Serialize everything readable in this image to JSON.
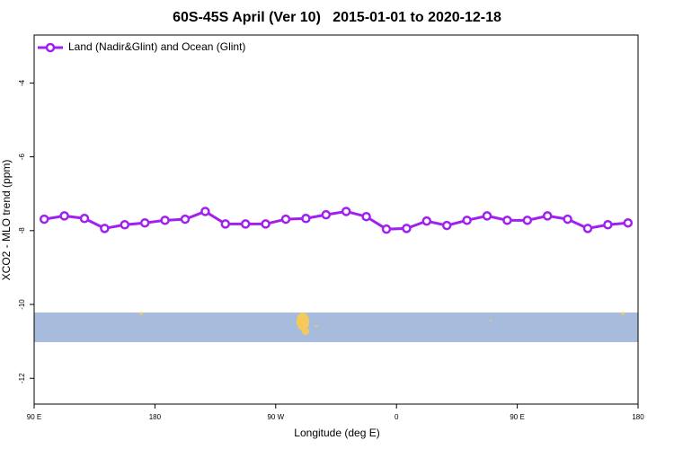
{
  "chart_data": {
    "type": "line",
    "title": "60S-45S April (Ver 10)   2015-01-01 to 2020-12-18",
    "x_label": "Longitude (deg E)",
    "y_label": "XCO2 - MLO trend (ppm)",
    "x": [
      97.5,
      112.5,
      127.5,
      142.5,
      157.5,
      172.5,
      187.5,
      202.5,
      217.5,
      232.5,
      247.5,
      262.5,
      277.5,
      292.5,
      307.5,
      322.5,
      337.5,
      352.5,
      367.5,
      382.5,
      397.5,
      412.5,
      427.5,
      442.5,
      457.5,
      472.5,
      487.5,
      502.5,
      517.5,
      532.5
    ],
    "series": [
      {
        "name": "Land (Nadir&Glint) and Ocean (Glint)",
        "color": "#a020f0",
        "values": [
          -7.69,
          -7.6,
          -7.67,
          -7.94,
          -7.84,
          -7.79,
          -7.72,
          -7.69,
          -7.48,
          -7.82,
          -7.82,
          -7.82,
          -7.69,
          -7.67,
          -7.57,
          -7.48,
          -7.62,
          -7.96,
          -7.94,
          -7.74,
          -7.86,
          -7.72,
          -7.6,
          -7.72,
          -7.72,
          -7.6,
          -7.69,
          -7.94,
          -7.84,
          -7.79
        ]
      }
    ],
    "xlim": [
      90,
      540
    ],
    "xticks": [
      {
        "value": 90,
        "label": "90 E"
      },
      {
        "value": 180,
        "label": "180"
      },
      {
        "value": 270,
        "label": "90 W"
      },
      {
        "value": 360,
        "label": "0"
      },
      {
        "value": 450,
        "label": "90 E"
      },
      {
        "value": 540,
        "label": "180"
      }
    ],
    "ylim": [
      -12.7,
      -2.7
    ],
    "yticks": [
      -4,
      -6,
      -8,
      -10,
      -12
    ],
    "legend": "top-left"
  }
}
